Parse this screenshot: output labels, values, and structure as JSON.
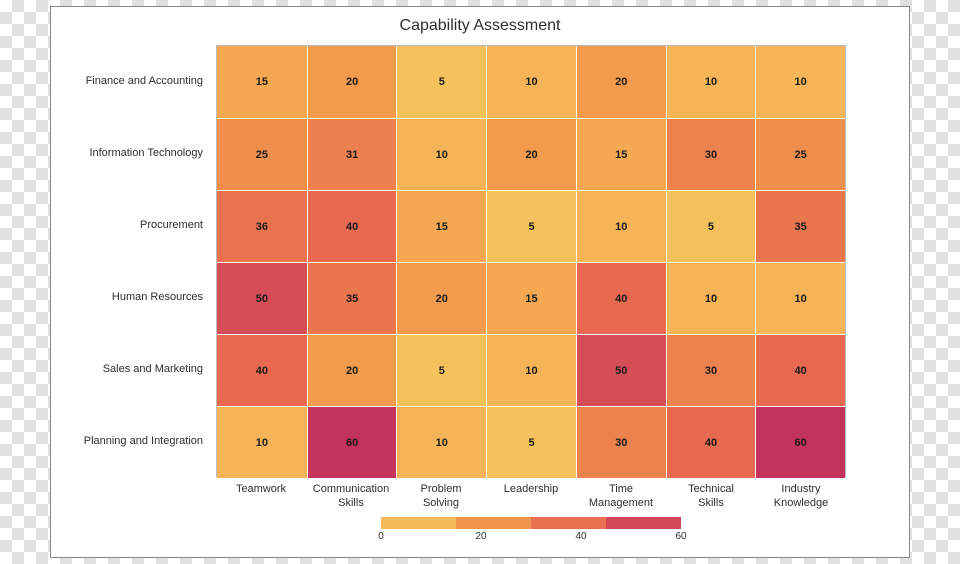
{
  "chart": {
    "type": "heatmap",
    "title": "Capability Assessment",
    "title_fontsize": 16,
    "title_color": "#2e2e2e",
    "card_border_color": "#888888",
    "plot_border_color": "#bcbcbc",
    "cell_gap_color": "#ffffff",
    "value_fontsize": 11,
    "value_fontweight": "bold",
    "value_color": "#1a1a1a",
    "label_fontsize": 11,
    "label_color": "#2e2e2e",
    "background_color": "#ffffff",
    "y_categories": [
      "Finance and Accounting",
      "Information Technology",
      "Procurement",
      "Human Resources",
      "Sales and Marketing",
      "Planning and Integration"
    ],
    "x_categories": [
      "Teamwork",
      "Communication Skills",
      "Problem Solving",
      "Leadership",
      "Time Management",
      "Technical Skills",
      "Industry Knowledge"
    ],
    "values": [
      [
        15,
        20,
        5,
        10,
        20,
        10,
        10
      ],
      [
        25,
        31,
        10,
        20,
        15,
        30,
        25
      ],
      [
        36,
        40,
        15,
        5,
        10,
        5,
        35
      ],
      [
        50,
        35,
        20,
        15,
        40,
        10,
        10
      ],
      [
        40,
        20,
        5,
        10,
        50,
        30,
        40
      ],
      [
        10,
        60,
        10,
        5,
        30,
        40,
        60
      ]
    ],
    "color_scale": {
      "domain_min": 0,
      "domain_max": 60,
      "stops": [
        {
          "at": 0.0,
          "color": "#f6cd62"
        },
        {
          "at": 0.33,
          "color": "#f29c4c"
        },
        {
          "at": 0.66,
          "color": "#e76a50"
        },
        {
          "at": 1.0,
          "color": "#c4325e"
        }
      ]
    },
    "legend": {
      "ticks": [
        0,
        20,
        40,
        60
      ],
      "segments": 4
    }
  }
}
